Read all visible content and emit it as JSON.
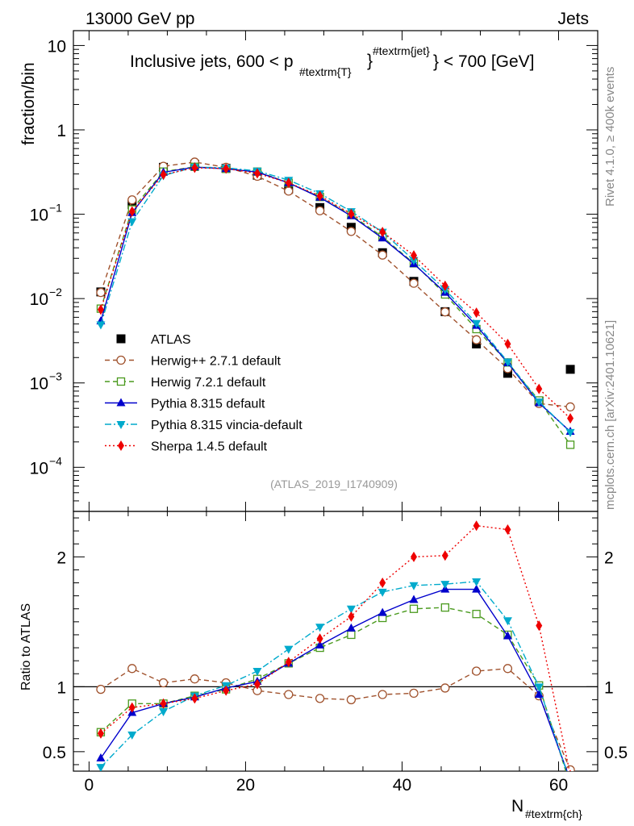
{
  "header": {
    "left": "13000 GeV pp",
    "right": "Jets",
    "title": "Inclusive jets, 600 < p",
    "title_sub": "#textrm{T}",
    "title_sup": "#textrm{jet}",
    "title_end": "} < 700 [GeV]",
    "title_brace": "}",
    "side_rivet": "Rivet 4.1.0, ≥ 400k events",
    "side_mcplots": "mcplots.cern.ch [arXiv:2401.10621]",
    "analysis_id": "(ATLAS_2019_I1740909)"
  },
  "chart_data": {
    "type": "scatter",
    "top_panel": {
      "ylabel": "fraction/bin",
      "yscale": "log",
      "ylim": [
        3e-05,
        15
      ],
      "yticks": [
        {
          "value": 10,
          "label": "10"
        },
        {
          "value": 1,
          "label": "1"
        },
        {
          "value": 0.1,
          "label": "10",
          "exp": "−1"
        },
        {
          "value": 0.01,
          "label": "10",
          "exp": "−2"
        },
        {
          "value": 0.001,
          "label": "10",
          "exp": "−3"
        },
        {
          "value": 0.0001,
          "label": "10",
          "exp": "−4"
        }
      ]
    },
    "bottom_panel": {
      "ylabel": "Ratio to ATLAS",
      "ylim": [
        0.35,
        2.35
      ],
      "yticks": [
        {
          "value": 0.5,
          "label": "0.5"
        },
        {
          "value": 1,
          "label": "1"
        },
        {
          "value": 2,
          "label": "2"
        }
      ],
      "reference_line": 1
    },
    "xlabel": "N",
    "xlabel_sub": "#textrm{ch}",
    "xlim": [
      -2,
      65
    ],
    "xticks": [
      {
        "value": 0,
        "label": "0"
      },
      {
        "value": 20,
        "label": "20"
      },
      {
        "value": 40,
        "label": "40"
      },
      {
        "value": 60,
        "label": "60"
      }
    ],
    "x": [
      1.5,
      5.5,
      9.5,
      13.5,
      17.5,
      21.5,
      25.5,
      29.5,
      33.5,
      37.5,
      41.5,
      45.5,
      49.5,
      53.5,
      57.5,
      61.5
    ],
    "series": [
      {
        "name": "ATLAS",
        "color": "#000000",
        "marker": "square-filled",
        "dash": "",
        "values": [
          0.012,
          0.13,
          0.36,
          0.39,
          0.35,
          0.29,
          0.2,
          0.12,
          0.07,
          0.035,
          0.016,
          0.007,
          0.0029,
          0.0013,
          0.00061,
          0.00145
        ],
        "ratio": [
          1,
          1,
          1,
          1,
          1,
          1,
          1,
          1,
          1,
          1,
          1,
          1,
          1,
          1,
          1,
          1
        ]
      },
      {
        "name": "Herwig++ 2.7.1 default",
        "color": "#a0522d",
        "marker": "circle-open",
        "dash": "6,4",
        "values": [
          0.0118,
          0.148,
          0.37,
          0.415,
          0.36,
          0.282,
          0.188,
          0.11,
          0.0625,
          0.0328,
          0.0152,
          0.00695,
          0.00325,
          0.00148,
          0.00057,
          0.00052
        ],
        "ratio": [
          0.98,
          1.14,
          1.03,
          1.06,
          1.03,
          0.97,
          0.94,
          0.91,
          0.9,
          0.94,
          0.95,
          0.99,
          1.12,
          1.14,
          0.93,
          0.36
        ]
      },
      {
        "name": "Herwig 7.2.1 default",
        "color": "#4a9a1e",
        "marker": "square-open",
        "dash": "6,4",
        "values": [
          0.0076,
          0.114,
          0.32,
          0.365,
          0.345,
          0.32,
          0.236,
          0.16,
          0.098,
          0.054,
          0.0262,
          0.0112,
          0.00435,
          0.00175,
          0.00062,
          0.000185
        ],
        "ratio": [
          0.65,
          0.87,
          0.87,
          0.93,
          0.98,
          1.06,
          1.18,
          1.3,
          1.4,
          1.53,
          1.6,
          1.61,
          1.56,
          1.4,
          1.01,
          0.24
        ]
      },
      {
        "name": "Pythia 8.315 default",
        "color": "#0000cc",
        "marker": "triangle-up",
        "dash": "",
        "values": [
          0.0054,
          0.104,
          0.314,
          0.362,
          0.346,
          0.316,
          0.235,
          0.158,
          0.0955,
          0.052,
          0.0258,
          0.0118,
          0.00478,
          0.00173,
          0.00058,
          0.000265
        ],
        "ratio": [
          0.45,
          0.8,
          0.87,
          0.92,
          0.99,
          1.04,
          1.18,
          1.32,
          1.45,
          1.57,
          1.67,
          1.75,
          1.75,
          1.39,
          0.94,
          0.28
        ]
      },
      {
        "name": "Pythia 8.315 vincia-default",
        "color": "#00aacc",
        "marker": "triangle-down",
        "dash": "8,3,2,3",
        "values": [
          0.0049,
          0.082,
          0.288,
          0.362,
          0.355,
          0.326,
          0.254,
          0.176,
          0.108,
          0.0615,
          0.0285,
          0.0128,
          0.0051,
          0.00178,
          0.0006,
          0.00026
        ],
        "ratio": [
          0.38,
          0.63,
          0.81,
          0.93,
          1.01,
          1.12,
          1.29,
          1.46,
          1.6,
          1.73,
          1.78,
          1.79,
          1.81,
          1.51,
          1.0,
          0.26
        ]
      },
      {
        "name": "Sherpa 1.4.5 default",
        "color": "#ee0000",
        "marker": "diamond",
        "dash": "2,3",
        "values": [
          0.0074,
          0.108,
          0.295,
          0.355,
          0.348,
          0.305,
          0.236,
          0.165,
          0.101,
          0.0615,
          0.0325,
          0.0142,
          0.0068,
          0.0029,
          0.00085,
          0.00038
        ],
        "ratio": [
          0.64,
          0.84,
          0.87,
          0.91,
          0.97,
          1.02,
          1.19,
          1.37,
          1.54,
          1.8,
          2.0,
          2.01,
          2.24,
          2.21,
          1.47,
          0.32
        ]
      }
    ]
  }
}
